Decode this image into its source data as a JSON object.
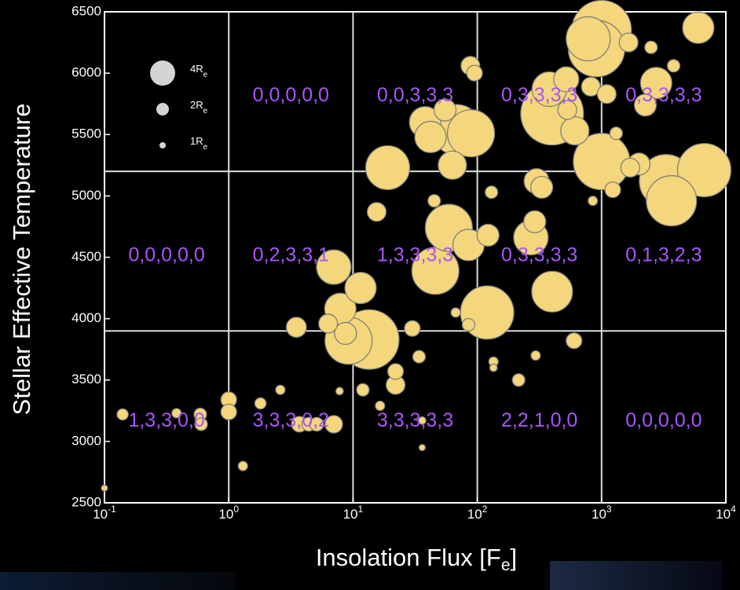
{
  "chart_data": {
    "type": "bubble",
    "x_label": {
      "text": "Insolation Flux [F",
      "sub": "e",
      "tail": "]"
    },
    "y_label": "Stellar Effective Temperature",
    "xscale": "log",
    "xlim": [
      0.1,
      10000
    ],
    "ylim": [
      2500,
      6500
    ],
    "xticks": [
      {
        "value": 0.1,
        "label": "10",
        "exponent": "-1"
      },
      {
        "value": 1,
        "label": "10",
        "exponent": "0"
      },
      {
        "value": 10,
        "label": "10",
        "exponent": "1"
      },
      {
        "value": 100,
        "label": "10",
        "exponent": "2"
      },
      {
        "value": 1000,
        "label": "10",
        "exponent": "3"
      },
      {
        "value": 10000,
        "label": "10",
        "exponent": "4"
      }
    ],
    "yticks": [
      2500,
      3000,
      3500,
      4000,
      4500,
      5000,
      5500,
      6000,
      6500
    ],
    "grid_x": [
      1,
      10,
      100,
      1000
    ],
    "grid_y": [
      3900,
      5200
    ],
    "color": "#f4d67c",
    "edge_color": "#7a7a7a",
    "x": [
      0.1,
      0.14,
      0.38,
      0.59,
      0.6,
      1.0,
      1.0,
      1.3,
      1.8,
      2.6,
      3.7,
      4.4,
      5.1,
      7.0,
      3.5,
      7.8,
      6.3,
      7.9,
      8.7,
      13.5,
      9.2,
      7.0,
      11.5,
      12,
      15.5,
      16.5,
      19,
      22,
      22,
      30,
      34,
      38,
      36,
      36,
      45,
      46,
      59,
      68,
      89,
      42,
      63,
      55,
      85,
      88,
      95,
      67,
      85,
      120,
      122,
      130,
      135,
      135,
      215,
      270,
      290,
      300,
      330,
      400,
      295,
      600,
      380,
      520,
      780,
      820,
      610,
      400,
      530,
      910,
      1000,
      1650,
      1100,
      850,
      1230,
      1000,
      1700,
      2000,
      2750,
      2250,
      3300,
      3650,
      6700,
      6000,
      3800,
      1310,
      2500
    ],
    "values": [
      2620,
      3220,
      3230,
      3220,
      3140,
      3340,
      3240,
      2800,
      3310,
      3420,
      3140,
      3140,
      3140,
      3140,
      3930,
      3410,
      3960,
      4080,
      3880,
      3830,
      3820,
      4420,
      4250,
      3420,
      4870,
      3290,
      5230,
      3570,
      3460,
      3920,
      3690,
      5600,
      3170,
      2950,
      4960,
      4390,
      4740,
      5540,
      5510,
      5480,
      5250,
      5700,
      4600,
      6060,
      6000,
      4050,
      3950,
      4050,
      4680,
      5030,
      3650,
      3600,
      3500,
      4660,
      4790,
      5120,
      5070,
      4220,
      3700,
      3820,
      5870,
      5950,
      6280,
      5890,
      5530,
      5670,
      5700,
      6200,
      6350,
      6250,
      5830,
      4960,
      5050,
      5280,
      5230,
      5260,
      5920,
      5740,
      5120,
      4960,
      5210,
      6370,
      6060,
      5510,
      6210
    ],
    "sizes": [
      1,
      1.8,
      1.5,
      2,
      2,
      2.5,
      2.5,
      1.5,
      1.8,
      1.5,
      2.5,
      2.2,
      2.2,
      2.8,
      3.2,
      1.2,
      3,
      5,
      3.5,
      9.5,
      7.5,
      5.5,
      5,
      2,
      3,
      1.5,
      7,
      2.5,
      3,
      2.5,
      2,
      5,
      1.2,
      1,
      2,
      7.5,
      7.5,
      8,
      7.5,
      5,
      4.5,
      3.5,
      5,
      3,
      2.5,
      1.5,
      2,
      8.5,
      3.5,
      2,
      1.5,
      1.2,
      2,
      5.5,
      3.5,
      4,
      3.5,
      6.5,
      1.5,
      2.5,
      5.5,
      4,
      7,
      3,
      4.5,
      10,
      3,
      9,
      9.5,
      3,
      3,
      1.5,
      2.5,
      9,
      3,
      3.5,
      5,
      3.5,
      8.5,
      8,
      8.5,
      5,
      2,
      2,
      2
    ],
    "size_legend": {
      "sizes": [
        4,
        2,
        1
      ],
      "labels": [
        "4R",
        "2R",
        "1R"
      ],
      "subscript": "e",
      "color": "#d4d4d4"
    },
    "cell_labels": [
      [
        "0,0,0,0,0",
        "0,0,3,3,3",
        "0,3,3,3,3",
        "0,3,3,3,3"
      ],
      [
        "0,0,0,0,0",
        "0,2,3,3,1",
        "1,3,3,3,3",
        "0,3,3,3,3",
        "0,1,3,2,3"
      ],
      [
        "1,3,3,0,0",
        "3,3,3,0,2",
        "3,3,3,3,3",
        "2,2,1,0,0",
        "0,0,0,0,0"
      ]
    ],
    "cell_label_color": "#a855f7"
  }
}
